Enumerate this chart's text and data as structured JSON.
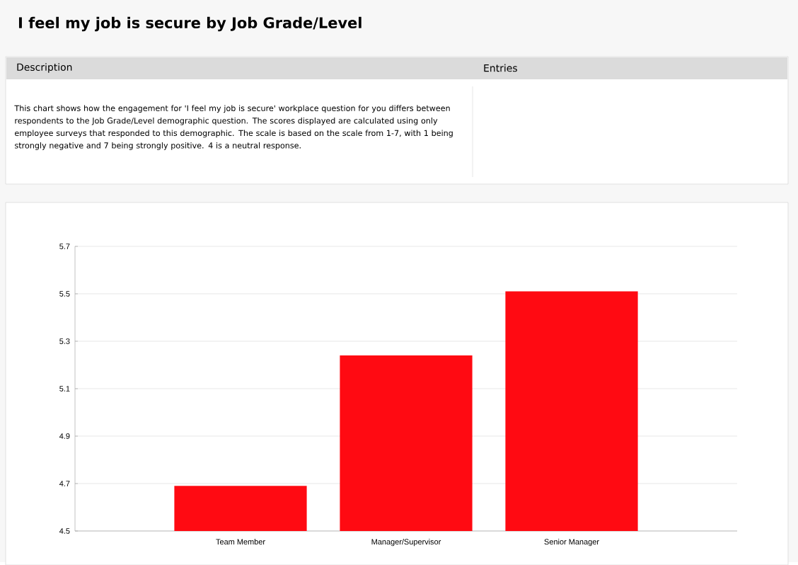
{
  "chart_data": {
    "type": "bar",
    "title": "I feel my job is secure by Job Grade/Level",
    "annotations": [
      "Description",
      "Entries",
      "This chart shows how the engagement for 'I feel my job is secure' workplace question for you differs between respondents to the Job Grade/Level demographic question. The scores displayed are calculated using only employee surveys that responded to this demographic. The scale is based on the scale from 1-7, with 1 being strongly negative and 7 being strongly positive. 4 is a neutral response."
    ],
    "categories": [
      "Team Member",
      "Manager/Supervisor",
      "Senior Manager"
    ],
    "values": [
      4.69,
      5.24,
      5.51
    ],
    "color": "#ff0a12",
    "ylim": [
      4.5,
      5.7
    ],
    "yticks": [
      4.5,
      4.7,
      4.9,
      5.1,
      5.3,
      5.5,
      5.7
    ],
    "grid": "y"
  }
}
